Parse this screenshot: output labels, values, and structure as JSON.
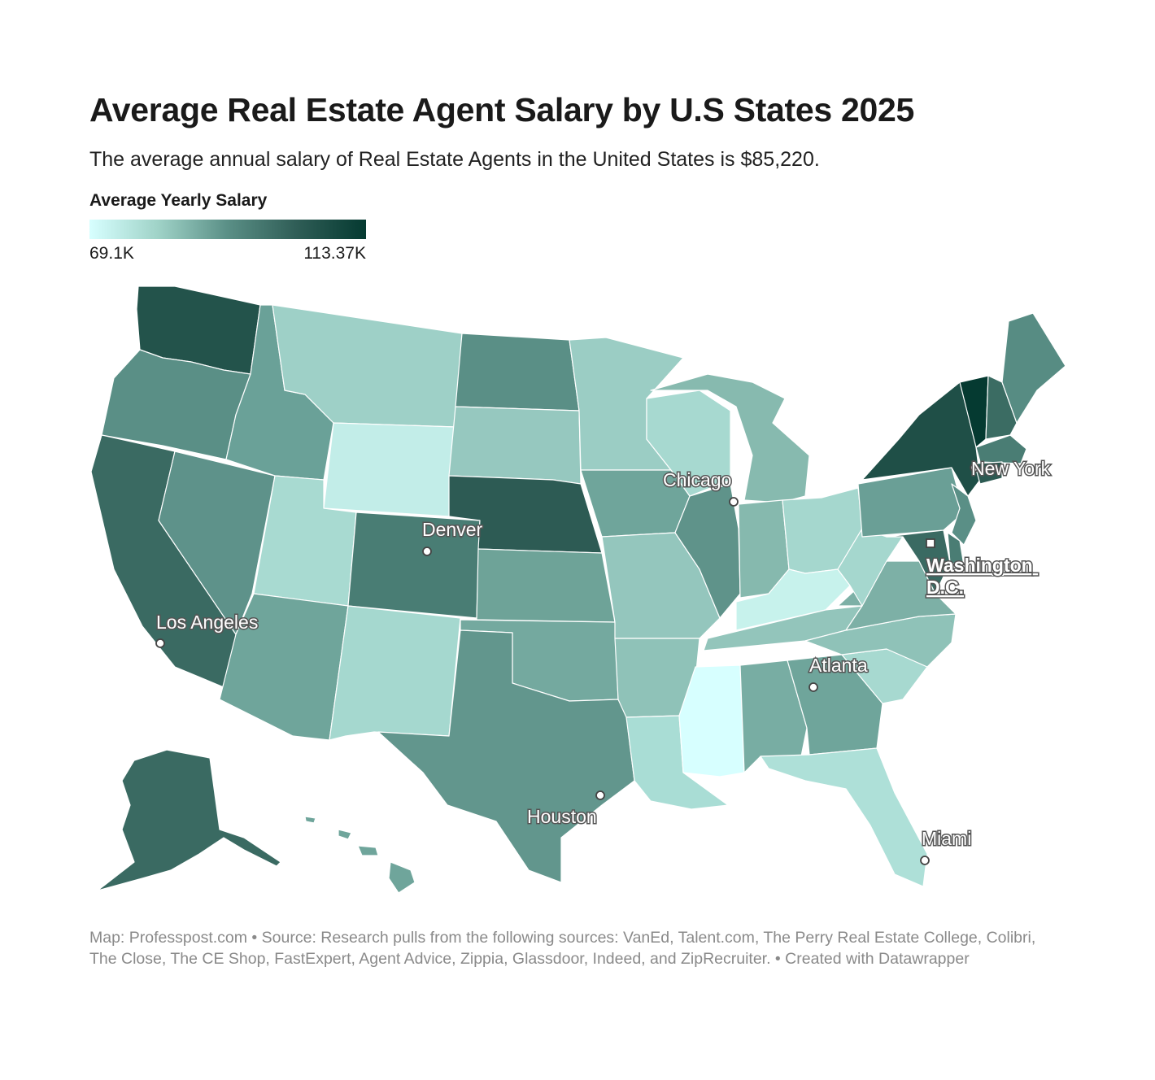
{
  "title": "Average Real Estate Agent Salary by U.S States 2025",
  "subtitle": "The average annual salary of Real Estate Agents in the United States is $85,220.",
  "legend": {
    "title": "Average Yearly Salary",
    "min_label": "69.1K",
    "max_label": "113.37K",
    "colors": [
      "#d7ffff",
      "#9fd2c7",
      "#5a8f86",
      "#2f5d56",
      "#053a31"
    ]
  },
  "cities": [
    {
      "id": "los-angeles",
      "name": "Los Angeles"
    },
    {
      "id": "denver",
      "name": "Denver"
    },
    {
      "id": "chicago",
      "name": "Chicago"
    },
    {
      "id": "houston",
      "name": "Houston"
    },
    {
      "id": "atlanta",
      "name": "Atlanta"
    },
    {
      "id": "new-york",
      "name": "New York"
    },
    {
      "id": "washington",
      "name": "Washington D.C."
    },
    {
      "id": "miami",
      "name": "Miami"
    }
  ],
  "state_colors": {
    "WA": "#23534b",
    "OR": "#5a8f86",
    "CA": "#3a6a62",
    "NV": "#5e928a",
    "ID": "#6aa198",
    "MT": "#9ed0c7",
    "WY": "#c2ede8",
    "UT": "#a8dad1",
    "AZ": "#6fa59b",
    "NM": "#a5d8cf",
    "CO": "#497d74",
    "ND": "#5a8f86",
    "SD": "#96c8bf",
    "NE": "#2d5b54",
    "KS": "#6ea398",
    "OK": "#74a99f",
    "TX": "#62968d",
    "MN": "#9bcdc4",
    "IA": "#6fa59b",
    "MO": "#94c6bd",
    "AR": "#8fc2b8",
    "LA": "#a9ddd5",
    "WI": "#a7d9d0",
    "IL": "#5f938a",
    "MS": "#d7ffff",
    "MI": "#87baaf",
    "IN": "#86b9ae",
    "OH": "#a5d7ce",
    "KY": "#c7f2ec",
    "TN": "#93c5bb",
    "AL": "#78ada3",
    "GA": "#6fa59b",
    "FL": "#aee0d8",
    "SC": "#a7d9d0",
    "NC": "#8fc2b8",
    "VA": "#7db0a6",
    "WV": "#a5d7ce",
    "PA": "#6a9f96",
    "NY": "#1f4f47",
    "VT": "#053a31",
    "NH": "#3b6c63",
    "ME": "#578c83",
    "MA": "#4a7d74",
    "CT": "#2c5a52",
    "NJ": "#5a8f86",
    "DE": "#4a7d74",
    "MD": "#3a6a62",
    "AK": "#3a6a62",
    "HI": "#6fa59b"
  },
  "footer": "Map: Professpost.com • Source: Research pulls from the following sources: VanEd, Talent.com, The Perry Real Estate College, Colibri, The Close, The CE Shop, FastExpert, Agent Advice, Zippia, Glassdoor, Indeed, and ZipRecruiter.  • Created with Datawrapper"
}
